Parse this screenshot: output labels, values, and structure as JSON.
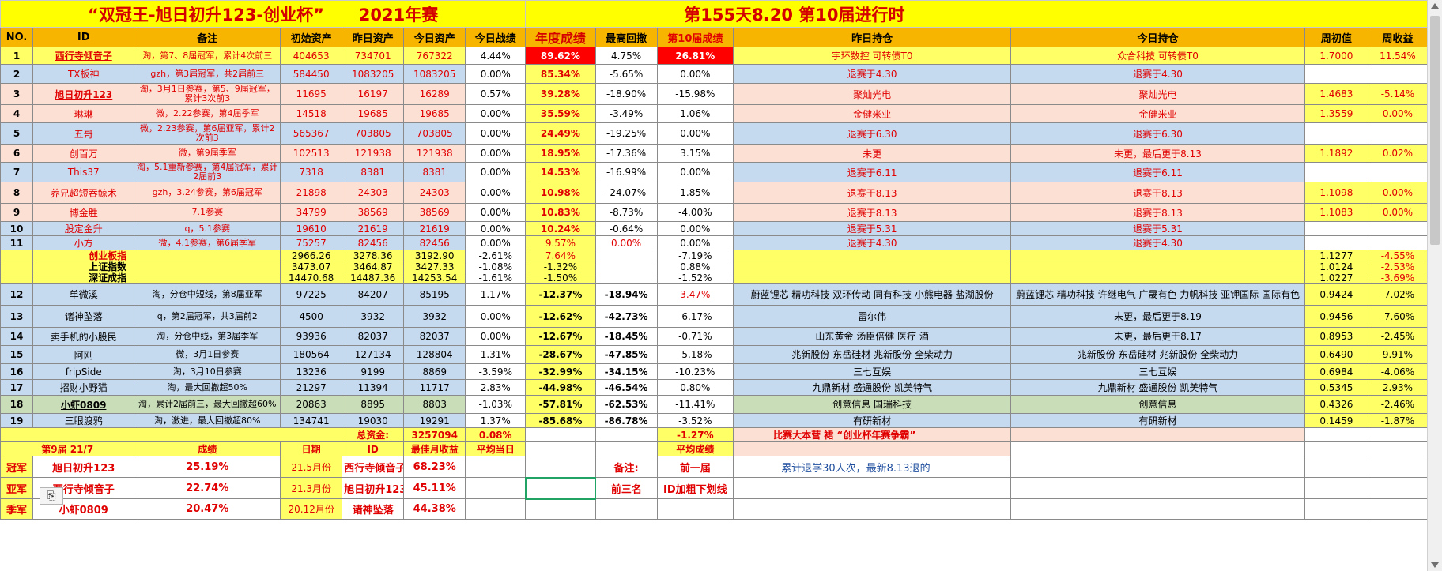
{
  "title": {
    "main": "“双冠王-旭日初升123-创业杯”",
    "season": "2021年赛",
    "day": "第155天8.20  第10届进行时"
  },
  "headers": [
    "NO.",
    "ID",
    "备注",
    "初始资产",
    "昨日资产",
    "今日资产",
    "今日战绩",
    "年度成绩",
    "最高回撤",
    "第10届成绩",
    "昨日持仓",
    "今日持仓",
    "周初值",
    "周收益"
  ],
  "rows_top": [
    {
      "no": "1",
      "id": "西行寺倾音子",
      "note": "淘，第7、8届冠军，累计4次前三",
      "init": "404653",
      "yest": "734701",
      "today": "767322",
      "day_pct": "4.44%",
      "year": "89.62%",
      "dd": "4.75%",
      "s10": "26.81%",
      "hold_y": "宇环数控 可转债T0",
      "hold_t": "众合科技 可转债T0",
      "wk_init": "1.7000",
      "wk_ret": "11.54%"
    },
    {
      "no": "2",
      "id": "TX板神",
      "note": "gzh，第3届冠军，共2届前三",
      "init": "584450",
      "yest": "1083205",
      "today": "1083205",
      "day_pct": "0.00%",
      "year": "85.34%",
      "dd": "-5.65%",
      "s10": "0.00%",
      "hold_y": "退赛于4.30",
      "hold_t": "退赛于4.30",
      "wk_init": "",
      "wk_ret": ""
    },
    {
      "no": "3",
      "id": "旭日初升123",
      "note": "淘，3月1日参赛，第5、9届冠军，累计3次前3",
      "init": "11695",
      "yest": "16197",
      "today": "16289",
      "day_pct": "0.57%",
      "year": "39.28%",
      "dd": "-18.90%",
      "s10": "-15.98%",
      "hold_y": "聚灿光电",
      "hold_t": "聚灿光电",
      "wk_init": "1.4683",
      "wk_ret": "-5.14%"
    },
    {
      "no": "4",
      "id": "琳琳",
      "note": "微，2.22参赛，第4届季军",
      "init": "14518",
      "yest": "19685",
      "today": "19685",
      "day_pct": "0.00%",
      "year": "35.59%",
      "dd": "-3.49%",
      "s10": "1.06%",
      "hold_y": "金健米业",
      "hold_t": "金健米业",
      "wk_init": "1.3559",
      "wk_ret": "0.00%"
    },
    {
      "no": "5",
      "id": "五哥",
      "note": "微，2.23参赛，第6届亚军，累计2次前3",
      "init": "565367",
      "yest": "703805",
      "today": "703805",
      "day_pct": "0.00%",
      "year": "24.49%",
      "dd": "-19.25%",
      "s10": "0.00%",
      "hold_y": "退赛于6.30",
      "hold_t": "退赛于6.30",
      "wk_init": "",
      "wk_ret": ""
    },
    {
      "no": "6",
      "id": "创百万",
      "note": "微，第9届季军",
      "init": "102513",
      "yest": "121938",
      "today": "121938",
      "day_pct": "0.00%",
      "year": "18.95%",
      "dd": "-17.36%",
      "s10": "3.15%",
      "hold_y": "未更",
      "hold_t": "未更，最后更于8.13",
      "wk_init": "1.1892",
      "wk_ret": "0.02%"
    },
    {
      "no": "7",
      "id": "This37",
      "note": "淘，5.1重新参赛，第4届冠军，累计2届前3",
      "init": "7318",
      "yest": "8381",
      "today": "8381",
      "day_pct": "0.00%",
      "year": "14.53%",
      "dd": "-16.99%",
      "s10": "0.00%",
      "hold_y": "退赛于6.11",
      "hold_t": "退赛于6.11",
      "wk_init": "",
      "wk_ret": ""
    },
    {
      "no": "8",
      "id": "养兄超短吞鲸术",
      "note": "gzh，3.24参赛，第6届冠军",
      "init": "21898",
      "yest": "24303",
      "today": "24303",
      "day_pct": "0.00%",
      "year": "10.98%",
      "dd": "-24.07%",
      "s10": "1.85%",
      "hold_y": "退赛于8.13",
      "hold_t": "退赛于8.13",
      "wk_init": "1.1098",
      "wk_ret": "0.00%"
    },
    {
      "no": "9",
      "id": "博金胜",
      "note": "7.1参赛",
      "init": "34799",
      "yest": "38569",
      "today": "38569",
      "day_pct": "0.00%",
      "year": "10.83%",
      "dd": "-8.73%",
      "s10": "-4.00%",
      "hold_y": "退赛于8.13",
      "hold_t": "退赛于8.13",
      "wk_init": "1.1083",
      "wk_ret": "0.00%"
    },
    {
      "no": "10",
      "id": "股定金升",
      "note": "q，5.1参赛",
      "init": "19610",
      "yest": "21619",
      "today": "21619",
      "day_pct": "0.00%",
      "year": "10.24%",
      "dd": "-0.64%",
      "s10": "0.00%",
      "hold_y": "退赛于5.31",
      "hold_t": "退赛于5.31",
      "wk_init": "",
      "wk_ret": ""
    },
    {
      "no": "11",
      "id": "小方",
      "note": "微，4.1参赛，第6届季军",
      "init": "75257",
      "yest": "82456",
      "today": "82456",
      "day_pct": "0.00%",
      "year": "9.57%",
      "dd": "0.00%",
      "s10": "0.00%",
      "hold_y": "退赛于4.30",
      "hold_t": "退赛于4.30",
      "wk_init": "",
      "wk_ret": ""
    }
  ],
  "index_rows": [
    {
      "name": "创业板指",
      "init": "2966.26",
      "yest": "3278.36",
      "today": "3192.90",
      "day_pct": "-2.61%",
      "year": "7.64%",
      "s10": "-7.19%",
      "wk_init": "1.1277",
      "wk_ret": "-4.55%"
    },
    {
      "name": "上证指数",
      "init": "3473.07",
      "yest": "3464.87",
      "today": "3427.33",
      "day_pct": "-1.08%",
      "year": "-1.32%",
      "s10": "0.88%",
      "wk_init": "1.0124",
      "wk_ret": "-2.53%"
    },
    {
      "name": "深证成指",
      "init": "14470.68",
      "yest": "14487.36",
      "today": "14253.54",
      "day_pct": "-1.61%",
      "year": "-1.50%",
      "s10": "-1.52%",
      "wk_init": "1.0227",
      "wk_ret": "-3.69%"
    }
  ],
  "rows_bottom": [
    {
      "no": "12",
      "id": "单微溪",
      "note": "淘，分仓中短线，第8届亚军",
      "init": "97225",
      "yest": "84207",
      "today": "85195",
      "day_pct": "1.17%",
      "year": "-12.37%",
      "dd": "-18.94%",
      "s10": "3.47%",
      "hold_y": "蔚蓝锂芯 精功科技 双环传动 同有科技 小熊电器 盐湖股份",
      "hold_t": "蔚蓝锂芯 精功科技 许继电气 广晟有色 力帆科技 亚钾国际 国际有色",
      "wk_init": "0.9424",
      "wk_ret": "-7.02%"
    },
    {
      "no": "13",
      "id": "诸神坠落",
      "note": "q，第2届冠军，共3届前2",
      "init": "4500",
      "yest": "3932",
      "today": "3932",
      "day_pct": "0.00%",
      "year": "-12.62%",
      "dd": "-42.73%",
      "s10": "-6.17%",
      "hold_y": "雷尔伟",
      "hold_t": "未更，最后更于8.19",
      "wk_init": "0.9456",
      "wk_ret": "-7.60%"
    },
    {
      "no": "14",
      "id": "卖手机的小股民",
      "note": "淘，分仓中线，第3届季军",
      "init": "93936",
      "yest": "82037",
      "today": "82037",
      "day_pct": "0.00%",
      "year": "-12.67%",
      "dd": "-18.45%",
      "s10": "-0.71%",
      "hold_y": "山东黄金  汤臣倍健  医疗 酒",
      "hold_t": "未更，最后更于8.17",
      "wk_init": "0.8953",
      "wk_ret": "-2.45%"
    },
    {
      "no": "15",
      "id": "阿刚",
      "note": "微，3月1日参赛",
      "init": "180564",
      "yest": "127134",
      "today": "128804",
      "day_pct": "1.31%",
      "year": "-28.67%",
      "dd": "-47.85%",
      "s10": "-5.18%",
      "hold_y": "兆新股份 东岳硅材 兆新股份 全柴动力",
      "hold_t": "兆新股份 东岳硅材 兆新股份 全柴动力",
      "wk_init": "0.6490",
      "wk_ret": "9.91%"
    },
    {
      "no": "16",
      "id": "fripSide",
      "note": "淘，3月10日参赛",
      "init": "13236",
      "yest": "9199",
      "today": "8869",
      "day_pct": "-3.59%",
      "year": "-32.99%",
      "dd": "-34.15%",
      "s10": "-10.23%",
      "hold_y": "三七互娱",
      "hold_t": "三七互娱",
      "wk_init": "0.6984",
      "wk_ret": "-4.06%"
    },
    {
      "no": "17",
      "id": "招财小野猫",
      "note": "淘，最大回撤超50%",
      "init": "21297",
      "yest": "11394",
      "today": "11717",
      "day_pct": "2.83%",
      "year": "-44.98%",
      "dd": "-46.54%",
      "s10": "0.80%",
      "hold_y": "九鼎新材 盛通股份 凯美特气",
      "hold_t": "九鼎新材 盛通股份 凯美特气",
      "wk_init": "0.5345",
      "wk_ret": "2.93%"
    },
    {
      "no": "18",
      "id": "小虾0809",
      "note": "淘，累计2届前三，最大回撤超60%",
      "init": "20863",
      "yest": "8895",
      "today": "8803",
      "day_pct": "-1.03%",
      "year": "-57.81%",
      "dd": "-62.53%",
      "s10": "-11.41%",
      "hold_y": "创意信息 国瑞科技",
      "hold_t": "创意信息",
      "wk_init": "0.4326",
      "wk_ret": "-2.46%"
    },
    {
      "no": "19",
      "id": "三眼渡鸦",
      "note": "淘，激进，最大回撤超80%",
      "init": "134741",
      "yest": "19030",
      "today": "19291",
      "day_pct": "1.37%",
      "year": "-85.68%",
      "dd": "-86.78%",
      "s10": "-3.52%",
      "hold_y": "有研新材",
      "hold_t": "有研新材",
      "wk_init": "0.1459",
      "wk_ret": "-1.87%"
    }
  ],
  "totals": {
    "label": "总资金:",
    "value": "3257094",
    "day_pct": "0.08%",
    "s10": "-1.27%",
    "slogan": "比赛大本营 裙  “创业杯年赛争霸”"
  },
  "bottom_header": {
    "edition": "第9届 21/7",
    "score": "成绩",
    "date": "日期",
    "id": "ID",
    "best": "最佳月收益",
    "avg": "平均当日",
    "avg2": "平均成绩"
  },
  "bottom_rows": [
    {
      "rank": "冠军",
      "name": "旭日初升123",
      "score": "25.19%",
      "date": "21.5月份",
      "id": "西行寺倾音子",
      "best": "68.23%",
      "label": "备注:",
      "val": "前一届",
      "note": "累计退学30人次，最新8.13退的"
    },
    {
      "rank": "亚军",
      "name": "西行寺倾音子",
      "score": "22.74%",
      "date": "21.3月份",
      "id": "旭日初升123",
      "best": "45.11%",
      "label": "前三名",
      "val": "ID加粗下划线",
      "note": ""
    },
    {
      "rank": "季军",
      "name": "小虾0809",
      "score": "20.47%",
      "date": "20.12月份",
      "id": "诸神坠落",
      "best": "44.38%",
      "label": "",
      "val": "",
      "note": ""
    }
  ],
  "colors": {
    "title_bg": "#ffff00",
    "header_bg": "#f7b500",
    "blue": "#c5d9ef",
    "pink": "#fde0d4",
    "yellow": "#ffff66",
    "green": "#c9ddb8",
    "red": "#e00000"
  },
  "icons": {
    "paste": "paste-options-icon"
  }
}
